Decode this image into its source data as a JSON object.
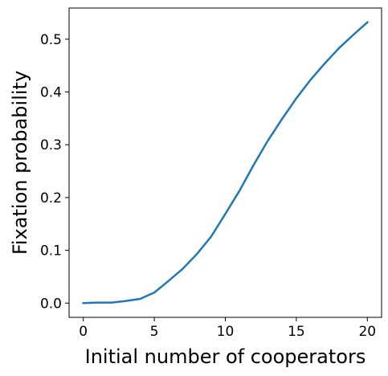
{
  "chart_data": {
    "type": "line",
    "title": "",
    "xlabel": "Initial number of cooperators",
    "ylabel": "Fixation probability",
    "xlim": [
      -1,
      21
    ],
    "ylim": [
      -0.027,
      0.559
    ],
    "xticks": [
      0,
      5,
      10,
      15,
      20
    ],
    "xtick_labels": [
      "0",
      "5",
      "10",
      "15",
      "20"
    ],
    "yticks": [
      0.0,
      0.1,
      0.2,
      0.3,
      0.4,
      0.5
    ],
    "ytick_labels": [
      "0.0",
      "0.1",
      "0.2",
      "0.3",
      "0.4",
      "0.5"
    ],
    "grid": false,
    "legend": "none",
    "series": [
      {
        "color": "#1f77b4",
        "x": [
          0,
          1,
          2,
          3,
          4,
          5,
          6,
          7,
          8,
          9,
          10,
          11,
          12,
          13,
          14,
          15,
          16,
          17,
          18,
          19,
          20
        ],
        "y": [
          0.0,
          0.001,
          0.001,
          0.004,
          0.008,
          0.02,
          0.042,
          0.065,
          0.093,
          0.126,
          0.169,
          0.213,
          0.262,
          0.308,
          0.349,
          0.388,
          0.423,
          0.454,
          0.483,
          0.508,
          0.532
        ]
      }
    ]
  }
}
